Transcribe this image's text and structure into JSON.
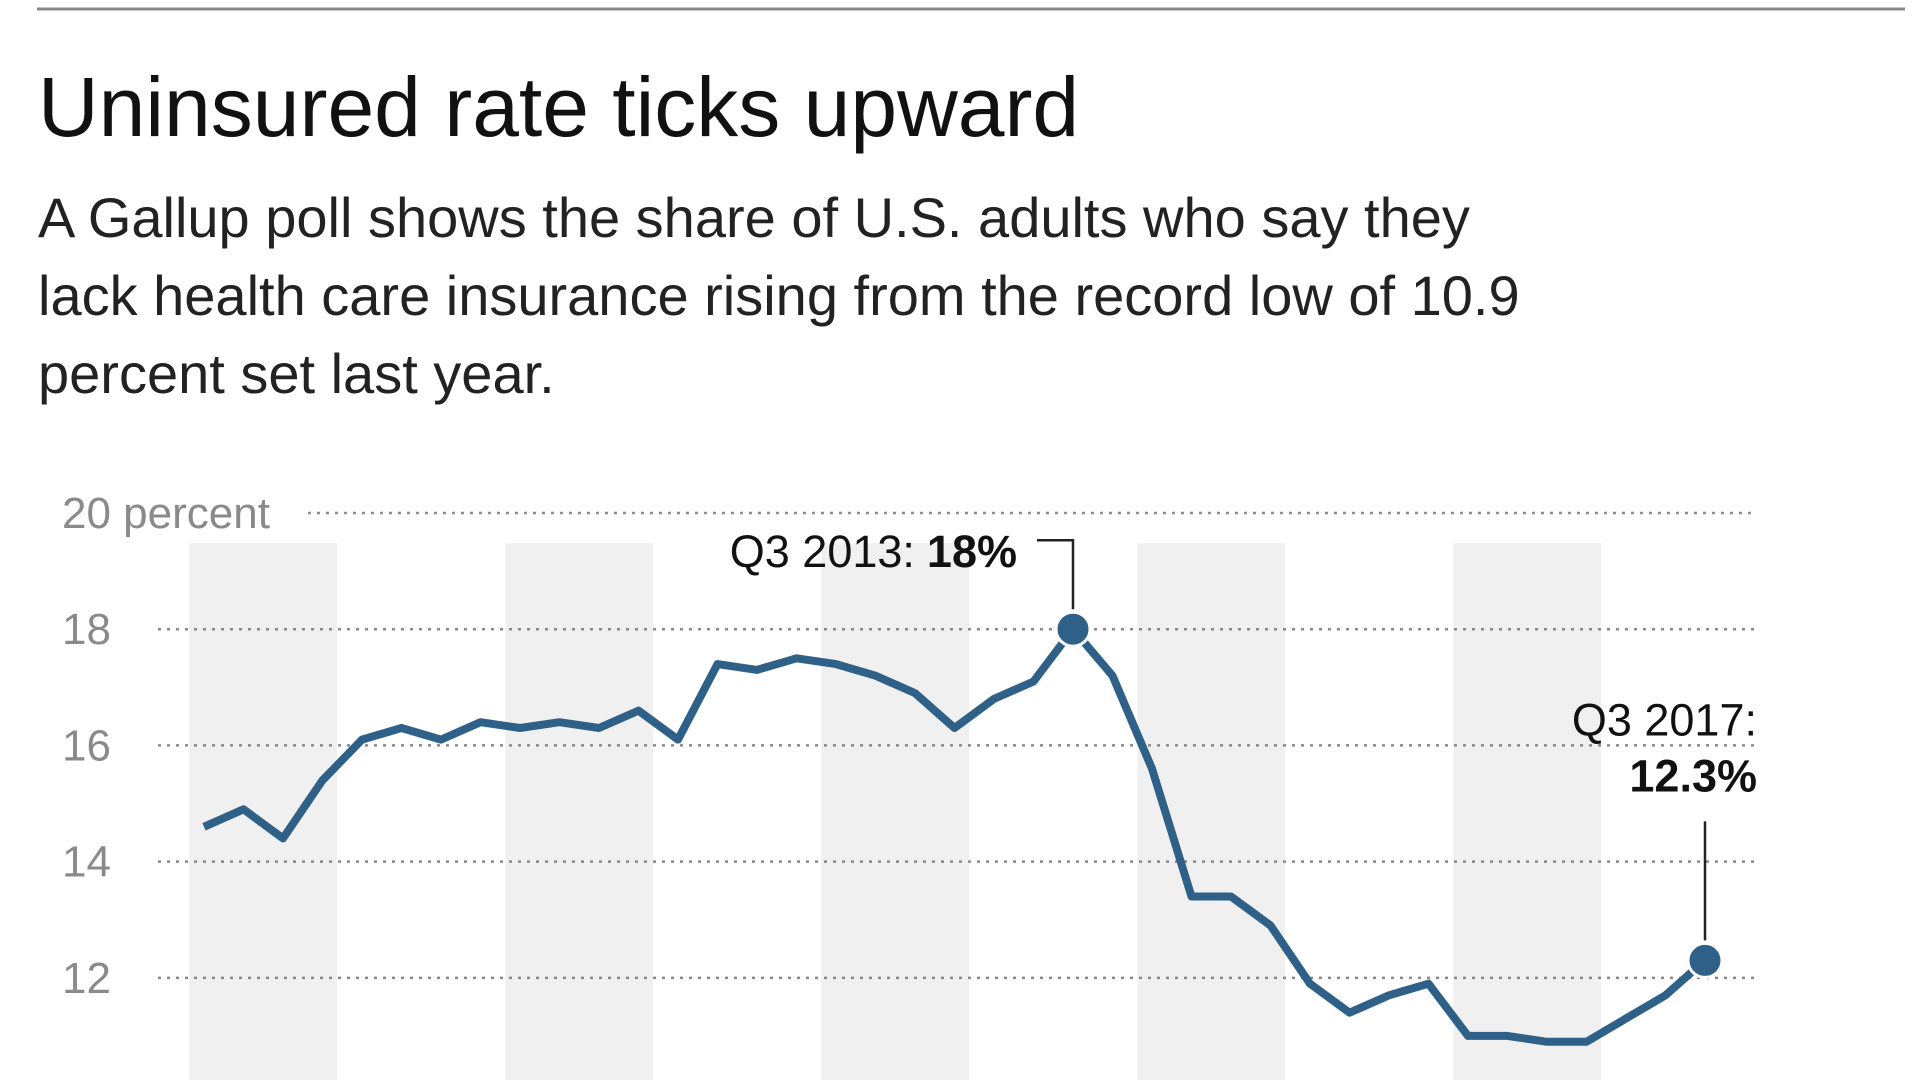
{
  "chart_data": {
    "type": "line",
    "title": "Uninsured rate ticks upward",
    "subtitle": [
      "A Gallup poll shows the share of U.S. adults who say they",
      "lack health care insurance rising from the record low of 10.9",
      "percent set last year."
    ],
    "categories": [
      null,
      null,
      null,
      null,
      null,
      null,
      null,
      null,
      null,
      null,
      null,
      null,
      null,
      null,
      null,
      null,
      null,
      null,
      null,
      null,
      null,
      null,
      "Q3 2013:",
      null,
      null,
      null,
      null,
      null,
      null,
      null,
      null,
      null,
      null,
      null,
      null,
      null,
      null,
      null,
      "Q3 2017:"
    ],
    "values": [
      14.6,
      14.9,
      14.4,
      15.4,
      16.1,
      16.3,
      16.1,
      16.4,
      16.3,
      16.4,
      16.3,
      16.6,
      16.1,
      17.4,
      17.3,
      17.5,
      17.4,
      17.2,
      16.9,
      16.3,
      16.8,
      17.1,
      18,
      17.2,
      15.6,
      13.4,
      13.4,
      12.9,
      11.9,
      11.4,
      11.7,
      11.9,
      11.0,
      11.0,
      10.9,
      10.9,
      11.3,
      11.7,
      12.3
    ],
    "value_labels": [
      null,
      null,
      null,
      null,
      null,
      null,
      null,
      null,
      null,
      null,
      null,
      null,
      null,
      null,
      null,
      null,
      null,
      null,
      null,
      null,
      null,
      null,
      "18%",
      null,
      null,
      null,
      null,
      null,
      null,
      null,
      null,
      null,
      null,
      null,
      null,
      null,
      null,
      null,
      "12.3%"
    ],
    "color": "#2f6188",
    "ylim": [
      10.5,
      20
    ],
    "yticks": [
      {
        "value": 20,
        "label": "20 percent"
      },
      18,
      16,
      14,
      12
    ],
    "grid": true
  }
}
